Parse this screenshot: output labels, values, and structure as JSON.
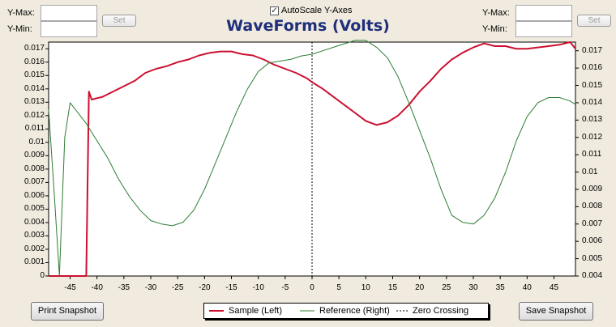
{
  "left_axis_controls": {
    "ymax_label": "Y-Max:",
    "ymin_label": "Y-Min:",
    "ymax_value": "",
    "ymin_value": "",
    "set_label": "Set"
  },
  "right_axis_controls": {
    "ymax_label": "Y-Max:",
    "ymin_label": "Y-Min:",
    "ymax_value": "",
    "ymin_value": "",
    "set_label": "Set"
  },
  "autoscale": {
    "label": "AutoScale Y-Axes",
    "checked": true
  },
  "buttons": {
    "print": "Print Snapshot",
    "save": "Save Snapshot"
  },
  "colors": {
    "sample": "#cc1030",
    "reference": "#2e7d32",
    "zero": "#000000",
    "title": "#1f2f7a"
  },
  "chart_data": {
    "type": "line",
    "title": "WaveForms (Volts)",
    "xlim": [
      -49,
      49
    ],
    "x_ticks": [
      -45,
      -40,
      -35,
      -30,
      -25,
      -20,
      -15,
      -10,
      -5,
      0,
      5,
      10,
      15,
      20,
      25,
      30,
      35,
      40,
      45
    ],
    "left_axis": {
      "ylim": [
        0,
        0.0175
      ],
      "ticks": [
        "0",
        "0.001",
        "0.002",
        "0.003",
        "0.004",
        "0.005",
        "0.006",
        "0.007",
        "0.008",
        "0.009",
        "0.01",
        "0.011",
        "0.012",
        "0.013",
        "0.014",
        "0.015",
        "0.016",
        "0.017"
      ]
    },
    "right_axis": {
      "ylim": [
        0.004,
        0.0175
      ],
      "ticks": [
        "0.004",
        "0.005",
        "0.006",
        "0.007",
        "0.008",
        "0.009",
        "0.01",
        "0.011",
        "0.012",
        "0.013",
        "0.014",
        "0.015",
        "0.016",
        "0.017"
      ]
    },
    "series": [
      {
        "name": "Sample (Left)",
        "axis": "left",
        "x": [
          -49,
          -42,
          -41.5,
          -41,
          -39,
          -37,
          -35,
          -33,
          -31,
          -29,
          -27,
          -25,
          -23,
          -21,
          -19,
          -17,
          -15,
          -13,
          -11,
          -9,
          -7,
          -5,
          -3,
          -1,
          0,
          2,
          4,
          6,
          8,
          10,
          12,
          14,
          16,
          18,
          20,
          22,
          24,
          26,
          28,
          30,
          32,
          34,
          36,
          38,
          40,
          42,
          44,
          46,
          48,
          49
        ],
        "y": [
          0,
          0,
          0.0138,
          0.0132,
          0.0134,
          0.0138,
          0.0142,
          0.0146,
          0.0152,
          0.0155,
          0.0157,
          0.016,
          0.0162,
          0.0165,
          0.0167,
          0.0168,
          0.0168,
          0.0166,
          0.0165,
          0.0162,
          0.0158,
          0.0155,
          0.0152,
          0.0148,
          0.0145,
          0.014,
          0.0134,
          0.0128,
          0.0122,
          0.0116,
          0.0113,
          0.0115,
          0.012,
          0.0128,
          0.0138,
          0.0146,
          0.0155,
          0.0162,
          0.0167,
          0.0171,
          0.0174,
          0.0172,
          0.0172,
          0.017,
          0.017,
          0.0171,
          0.0172,
          0.0173,
          0.0175,
          0.017
        ]
      },
      {
        "name": "Reference (Right)",
        "axis": "right",
        "x": [
          -49,
          -48,
          -47,
          -46,
          -45,
          -44,
          -43,
          -42,
          -40,
          -38,
          -36,
          -34,
          -32,
          -30,
          -28,
          -26,
          -24,
          -22,
          -20,
          -18,
          -16,
          -14,
          -12,
          -10,
          -8,
          -6,
          -4,
          -2,
          0,
          2,
          4,
          6,
          8,
          10,
          12,
          14,
          16,
          18,
          20,
          22,
          24,
          26,
          28,
          30,
          32,
          34,
          36,
          38,
          40,
          42,
          44,
          46,
          48,
          49
        ],
        "y": [
          0.0136,
          0.009,
          0.004,
          0.012,
          0.014,
          0.0136,
          0.0132,
          0.0128,
          0.0118,
          0.0108,
          0.0096,
          0.0086,
          0.0078,
          0.0072,
          0.007,
          0.0069,
          0.0071,
          0.0078,
          0.009,
          0.0105,
          0.012,
          0.0135,
          0.0148,
          0.0158,
          0.0163,
          0.0164,
          0.0165,
          0.0167,
          0.0168,
          0.017,
          0.0172,
          0.0174,
          0.0176,
          0.0176,
          0.0172,
          0.0166,
          0.0155,
          0.014,
          0.0124,
          0.0108,
          0.009,
          0.0075,
          0.0071,
          0.007,
          0.0075,
          0.0085,
          0.01,
          0.0118,
          0.0132,
          0.014,
          0.0143,
          0.0143,
          0.0141,
          0.0139
        ]
      }
    ],
    "zero_crossing_x": 0,
    "legend": [
      "Sample (Left)",
      "Reference (Right)",
      "Zero Crossing"
    ]
  }
}
